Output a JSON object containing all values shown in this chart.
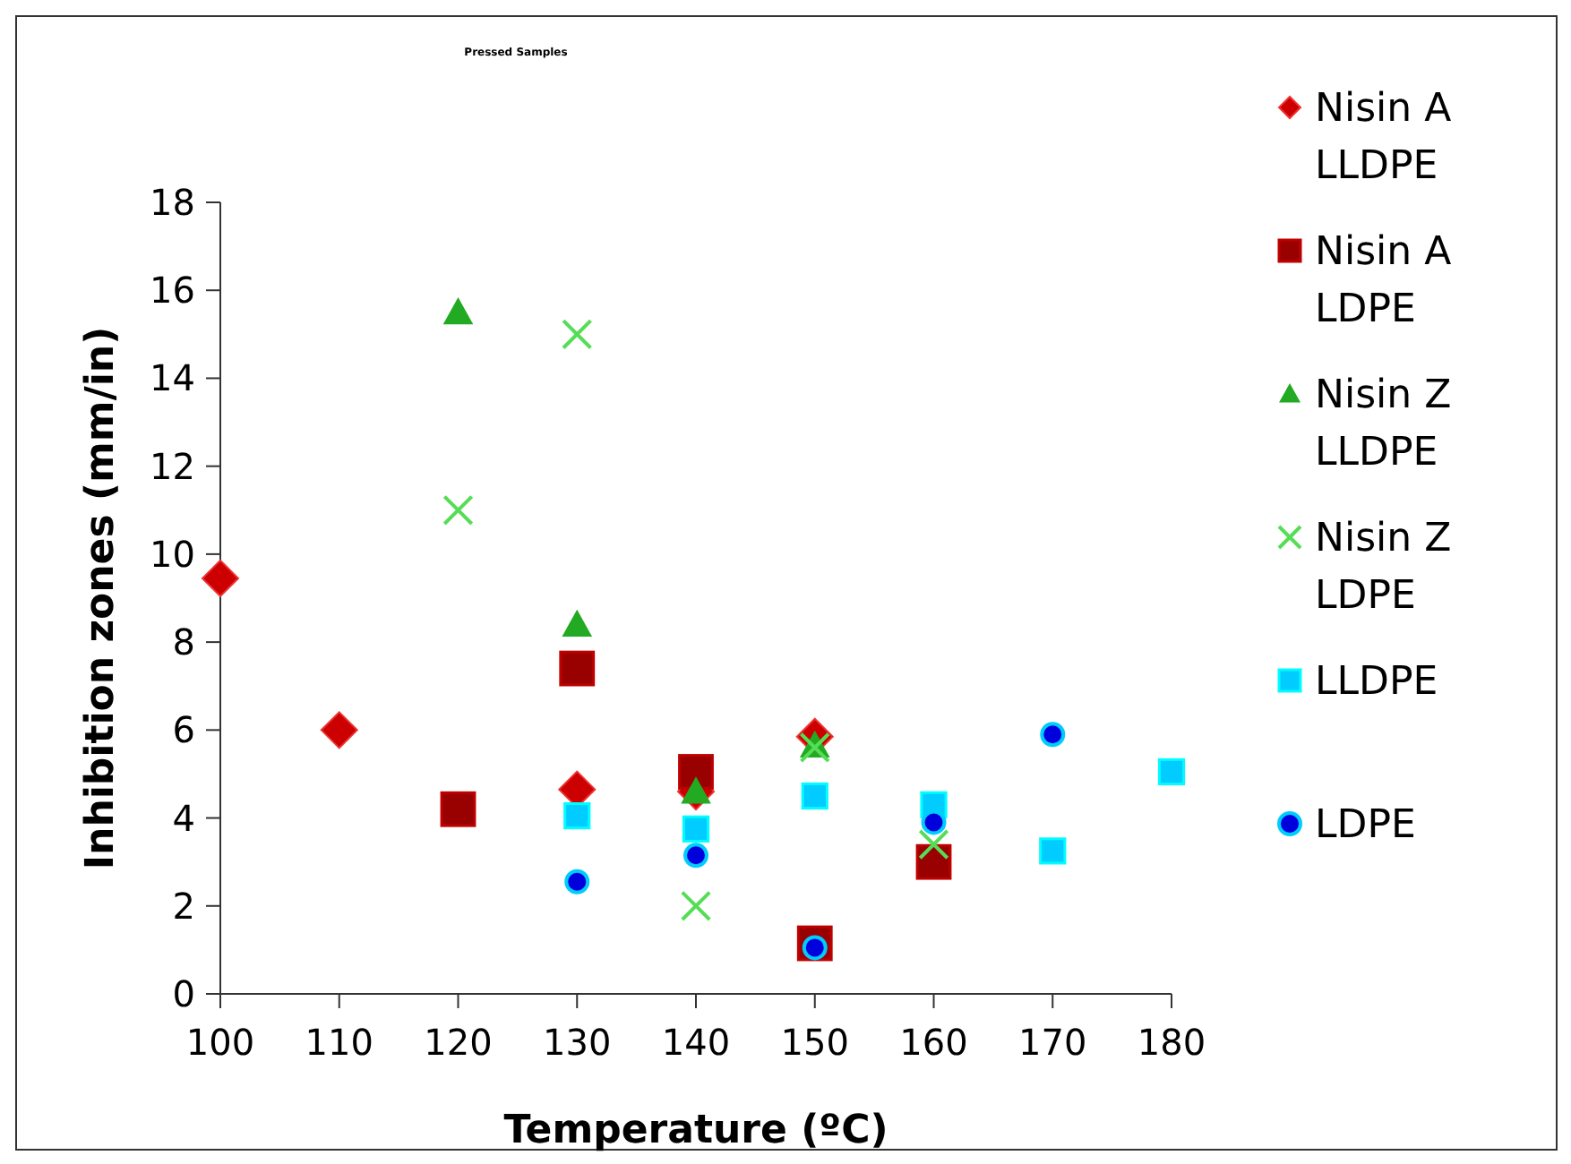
{
  "chart_data": {
    "type": "scatter",
    "title": "Pressed Samples",
    "xlabel": "Temperature (ºC)",
    "ylabel": "Inhibition zones (mm/in)",
    "xlim": [
      100,
      180
    ],
    "xticks": [
      100,
      110,
      120,
      130,
      140,
      150,
      160,
      170,
      180
    ],
    "ylim": [
      0,
      18
    ],
    "yticks": [
      0,
      2,
      4,
      6,
      8,
      10,
      12,
      14,
      16,
      18
    ],
    "grid": false,
    "legend": "right",
    "series": [
      {
        "name": "Nisin A LLDPE",
        "color": "#cc0000",
        "marker": "diamond",
        "x": [
          100,
          110,
          130,
          140,
          150
        ],
        "values": [
          9.45,
          6.0,
          4.65,
          4.6,
          5.85
        ]
      },
      {
        "name": "Nisin A LDPE",
        "color": "#990000",
        "marker": "square",
        "x": [
          120,
          130,
          140,
          150,
          160
        ],
        "values": [
          4.2,
          7.4,
          5.05,
          1.15,
          3.0
        ]
      },
      {
        "name": "Nisin Z LLDPE",
        "color": "#22aa22",
        "marker": "triangle",
        "x": [
          120,
          130,
          140,
          150
        ],
        "values": [
          15.5,
          8.4,
          4.6,
          5.65
        ]
      },
      {
        "name": "Nisin Z LDPE",
        "color": "#55dd55",
        "marker": "cross",
        "x": [
          120,
          130,
          140,
          150,
          160
        ],
        "values": [
          11.0,
          15.0,
          2.0,
          5.6,
          3.4
        ]
      },
      {
        "name": "LLDPE",
        "color": "#00ccff",
        "marker": "square",
        "x": [
          130,
          140,
          150,
          160,
          170,
          180
        ],
        "values": [
          4.05,
          3.75,
          4.5,
          4.3,
          3.25,
          5.05
        ]
      },
      {
        "name": "LDPE",
        "color": "#0000dd",
        "marker": "circle",
        "x": [
          130,
          140,
          150,
          160,
          170
        ],
        "values": [
          2.55,
          3.15,
          1.05,
          3.9,
          5.9
        ]
      }
    ]
  }
}
